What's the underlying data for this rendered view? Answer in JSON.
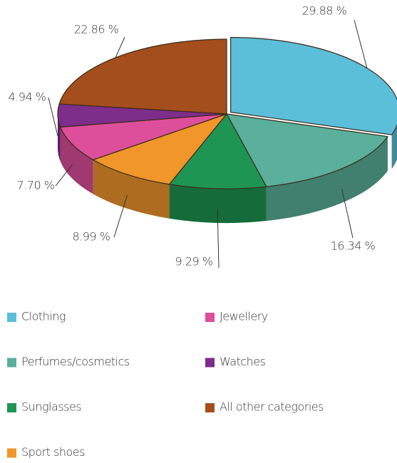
{
  "chart_data": {
    "type": "pie",
    "categories": [
      "Clothing",
      "Perfumes/cosmetics",
      "Sunglasses",
      "Sport shoes",
      "Jewellery",
      "Watches",
      "All other categories"
    ],
    "values": [
      29.88,
      16.34,
      9.29,
      8.99,
      7.7,
      4.94,
      22.86
    ],
    "value_labels": [
      "29.88 %",
      "16.34 %",
      "9.29 %",
      "8.99 %",
      "7.70 %",
      "4.94 %",
      "22.86 %"
    ],
    "colors": [
      "#5bbfd9",
      "#5ab09a",
      "#1f9553",
      "#f0962b",
      "#dd4f9a",
      "#7d2d8a",
      "#a34e1c"
    ],
    "legend": true
  }
}
